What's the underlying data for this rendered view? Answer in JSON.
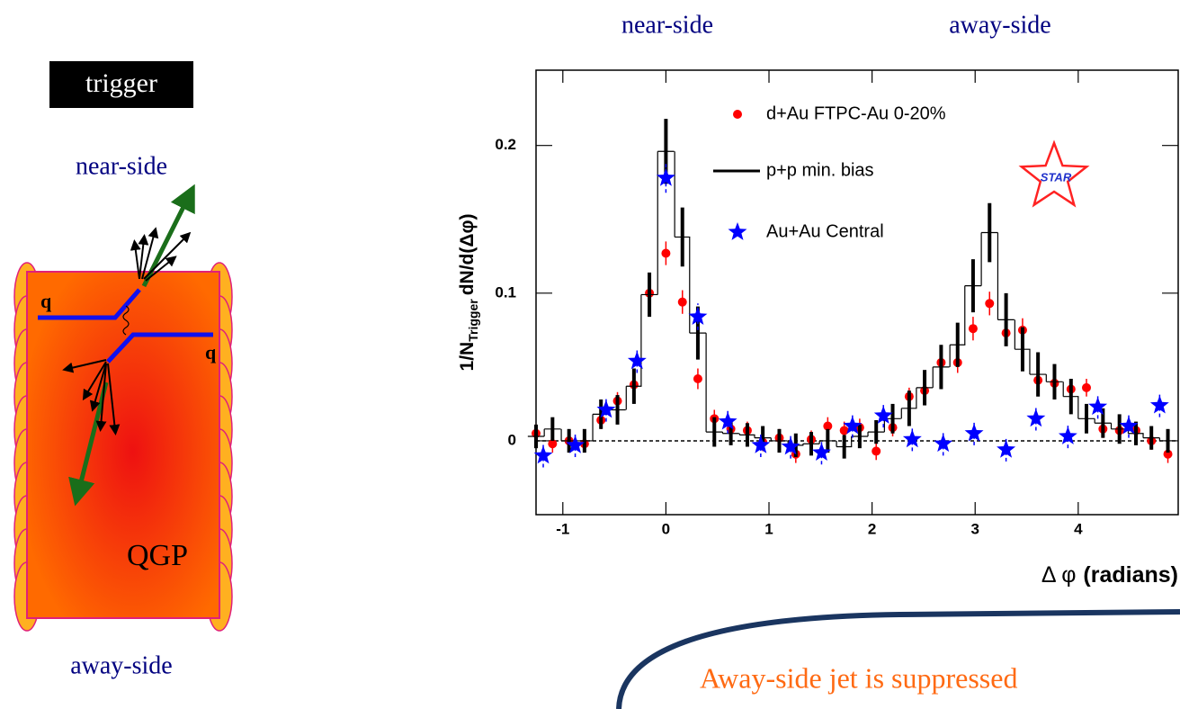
{
  "diagram": {
    "trigger": "trigger",
    "near_side": "near-side",
    "quarks": [
      "q",
      "q"
    ],
    "medium": "QGP",
    "away_side": "away-side"
  },
  "headers": [
    "near-side",
    "away-side"
  ],
  "conclusion": "Away-side jet is suppressed",
  "chart_data": {
    "type": "scatter",
    "xlabel": [
      "Δ φ",
      "(radians)"
    ],
    "ylabel": [
      "1/N",
      "Trigger",
      "dN/d(Δφ)"
    ],
    "logo": "STAR",
    "xlim": [
      -1.26,
      4.97
    ],
    "ylim": [
      -0.05,
      0.251
    ],
    "xticks": [
      -1,
      0,
      1,
      2,
      3,
      4
    ],
    "yticks": [
      0,
      0.1,
      0.2
    ],
    "reference_line": 0,
    "series": [
      {
        "name": "d+Au FTPC-Au 0-20%",
        "color": "#ff0000",
        "marker": "circle",
        "x": [
          -1.26,
          -1.1,
          -0.94,
          -0.79,
          -0.63,
          -0.47,
          -0.31,
          -0.16,
          0,
          0.16,
          0.31,
          0.47,
          0.63,
          0.79,
          0.94,
          1.1,
          1.26,
          1.41,
          1.57,
          1.73,
          1.88,
          2.04,
          2.2,
          2.36,
          2.51,
          2.67,
          2.83,
          2.98,
          3.14,
          3.3,
          3.46,
          3.61,
          3.77,
          3.93,
          4.08,
          4.24,
          4.4,
          4.56,
          4.71,
          4.87
        ],
        "values": [
          0.005,
          -0.002,
          0,
          -0.002,
          0.014,
          0.027,
          0.038,
          0.1,
          0.127,
          0.094,
          0.042,
          0.015,
          0.008,
          0.007,
          -0.001,
          0.002,
          -0.009,
          0.001,
          0.01,
          0.007,
          0.009,
          -0.007,
          0.009,
          0.03,
          0.034,
          0.053,
          0.053,
          0.076,
          0.093,
          0.073,
          0.075,
          0.041,
          0.039,
          0.035,
          0.036,
          0.008,
          0.007,
          0.007,
          0,
          -0.009
        ],
        "errors": [
          0.006,
          0.006,
          0.006,
          0.006,
          0.006,
          0.006,
          0.006,
          0.008,
          0.008,
          0.008,
          0.007,
          0.006,
          0.006,
          0.006,
          0.006,
          0.006,
          0.006,
          0.006,
          0.006,
          0.006,
          0.006,
          0.006,
          0.006,
          0.006,
          0.006,
          0.007,
          0.007,
          0.008,
          0.008,
          0.008,
          0.008,
          0.007,
          0.006,
          0.006,
          0.006,
          0.006,
          0.006,
          0.006,
          0.006,
          0.006
        ]
      },
      {
        "name": "p+p min. bias",
        "color": "#000000",
        "marker": "step",
        "x": [
          -1.26,
          -1.1,
          -0.94,
          -0.79,
          -0.63,
          -0.47,
          -0.31,
          -0.16,
          0,
          0.16,
          0.31,
          0.47,
          0.63,
          0.79,
          0.94,
          1.1,
          1.26,
          1.41,
          1.57,
          1.73,
          1.88,
          2.04,
          2.2,
          2.36,
          2.51,
          2.67,
          2.83,
          2.98,
          3.14,
          3.3,
          3.46,
          3.61,
          3.77,
          3.93,
          4.08,
          4.24,
          4.4,
          4.56,
          4.71,
          4.87
        ],
        "values": [
          0.003,
          0.008,
          0,
          0,
          0.018,
          0.021,
          0.037,
          0.099,
          0.196,
          0.138,
          0.073,
          0.006,
          0.005,
          0.004,
          0.002,
          0,
          -0.003,
          -0.002,
          0,
          -0.004,
          0.003,
          0.006,
          0.015,
          0.022,
          0.036,
          0.05,
          0.065,
          0.105,
          0.141,
          0.082,
          0.062,
          0.045,
          0.04,
          0.03,
          0.015,
          0.012,
          0.008,
          0.005,
          0.002,
          0
        ],
        "errors": [
          0.008,
          0.008,
          0.008,
          0.008,
          0.01,
          0.01,
          0.012,
          0.015,
          0.022,
          0.02,
          0.018,
          0.01,
          0.008,
          0.008,
          0.008,
          0.008,
          0.008,
          0.008,
          0.008,
          0.008,
          0.008,
          0.008,
          0.01,
          0.012,
          0.012,
          0.015,
          0.015,
          0.018,
          0.02,
          0.018,
          0.015,
          0.015,
          0.012,
          0.012,
          0.01,
          0.01,
          0.01,
          0.008,
          0.008,
          0.008
        ]
      },
      {
        "name": "Au+Au Central",
        "color": "#0000ff",
        "marker": "star",
        "x": [
          -1.19,
          -0.88,
          -0.58,
          -0.28,
          0,
          0.31,
          0.6,
          0.92,
          1.21,
          1.51,
          1.81,
          2.11,
          2.39,
          2.69,
          2.99,
          3.3,
          3.59,
          3.9,
          4.19,
          4.49,
          4.79
        ],
        "values": [
          -0.01,
          -0.003,
          0.021,
          0.054,
          0.178,
          0.084,
          0.013,
          -0.003,
          -0.004,
          -0.008,
          0.01,
          0.017,
          0.001,
          -0.002,
          0.005,
          -0.006,
          0.015,
          0.003,
          0.023,
          0.01,
          0.024
        ],
        "errors": [
          0.008,
          0.008,
          0.008,
          0.008,
          0.01,
          0.009,
          0.008,
          0.008,
          0.008,
          0.008,
          0.008,
          0.008,
          0.008,
          0.008,
          0.008,
          0.008,
          0.008,
          0.008,
          0.008,
          0.008,
          0.008
        ]
      }
    ]
  }
}
